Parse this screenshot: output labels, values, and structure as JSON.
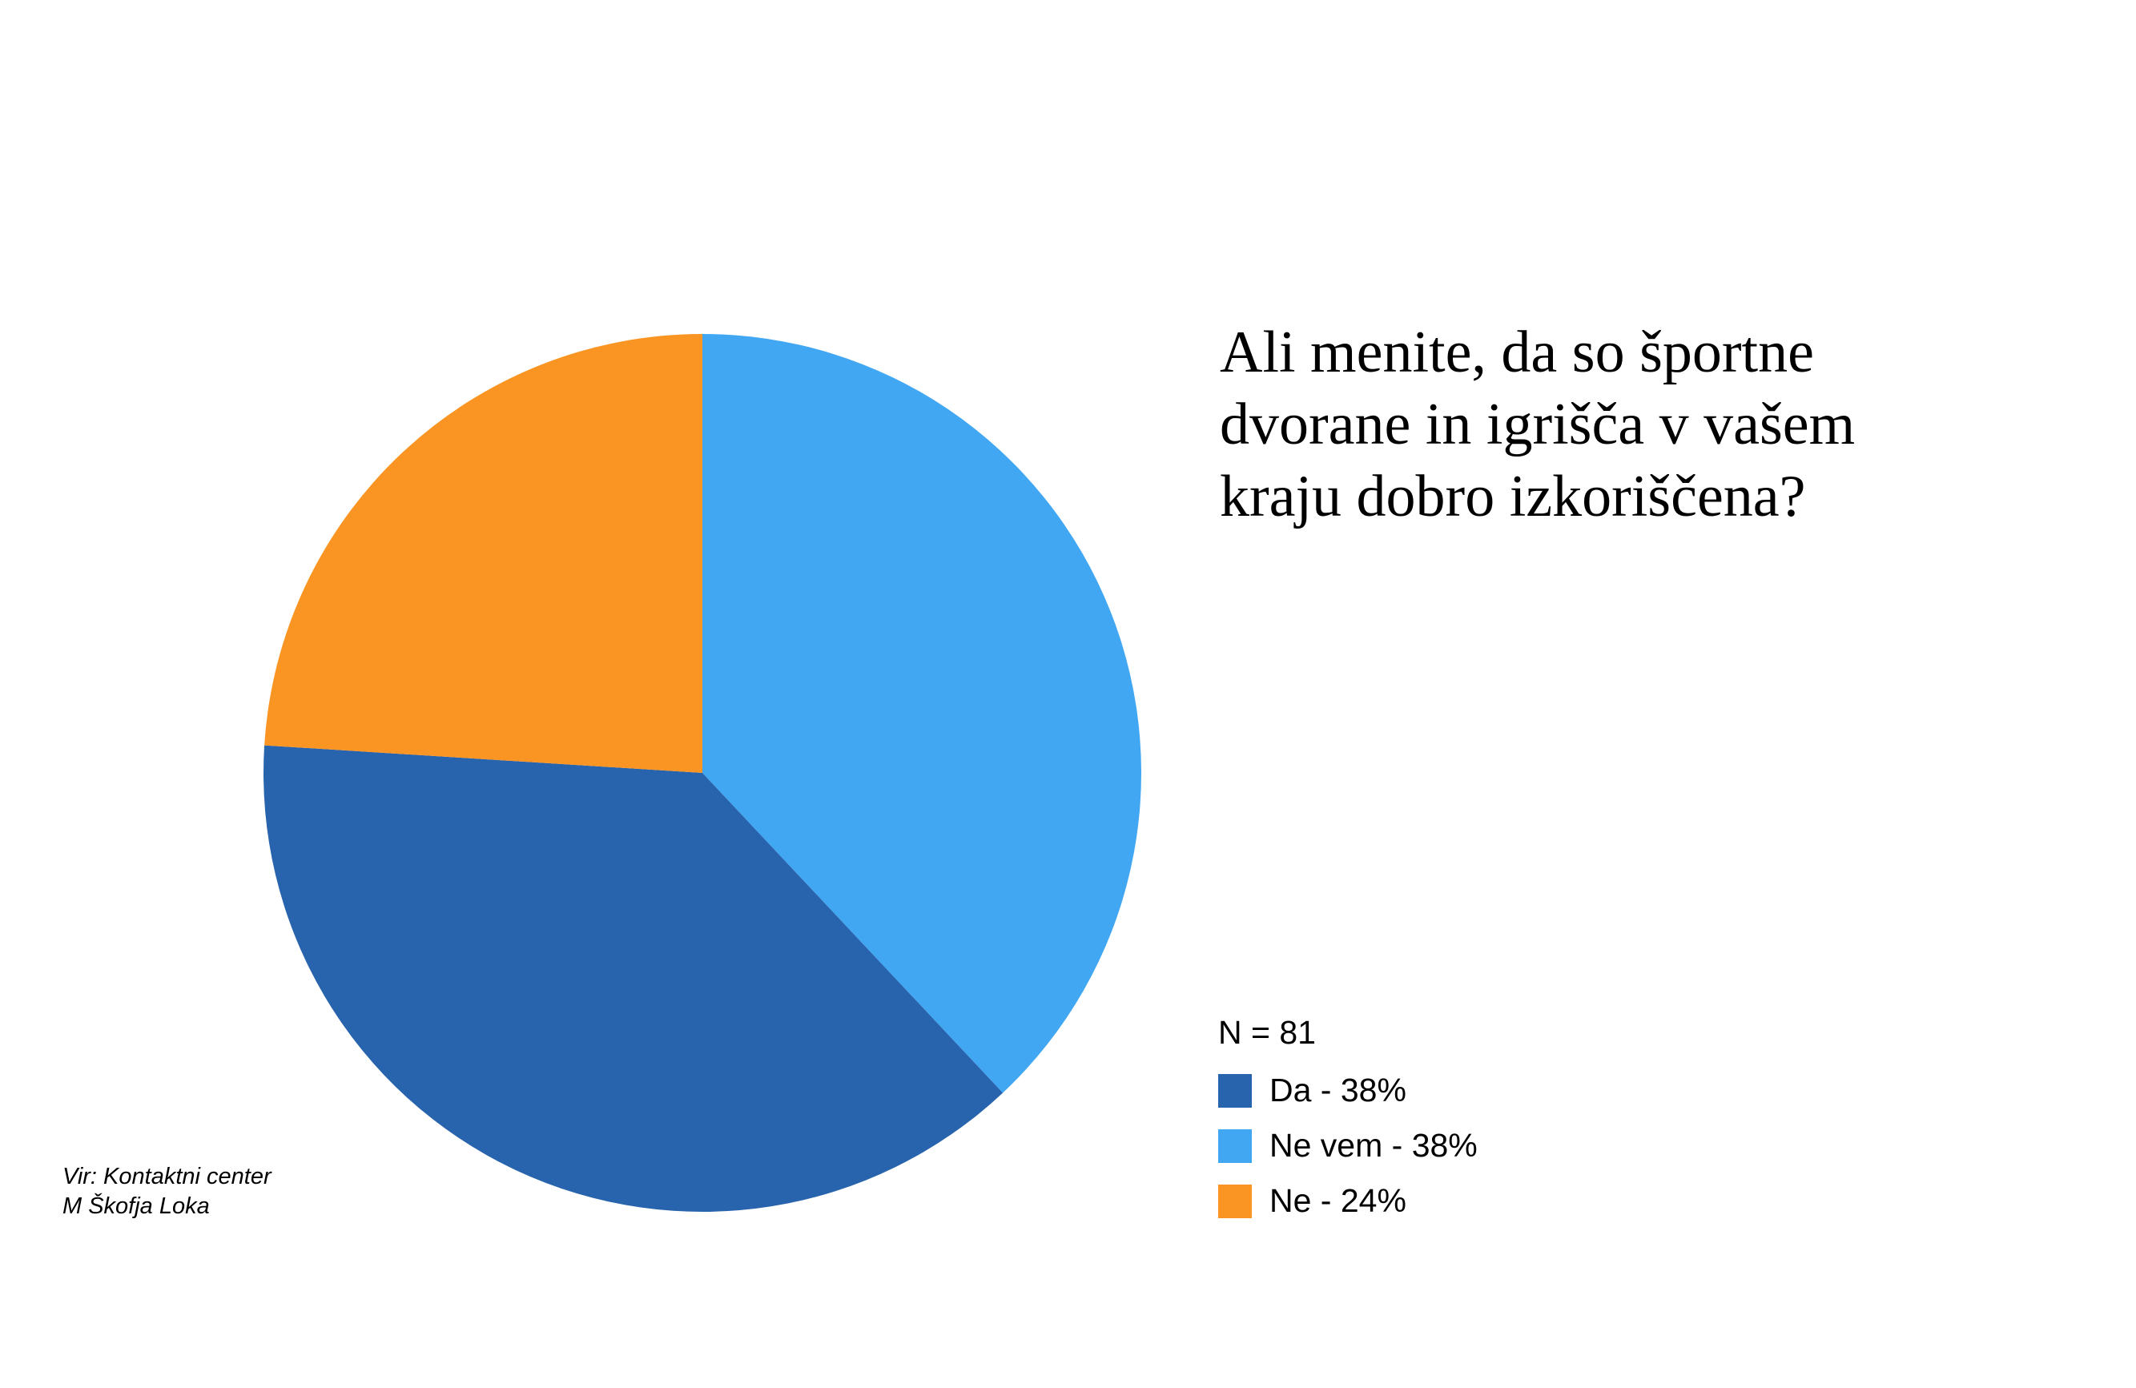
{
  "title": "Ali menite, da so športne\ndvorane in igrišča v vašem\nkraju dobro izkoriščena?",
  "source": "Vir: Kontaktni center\nM Škofja Loka",
  "legend": {
    "n_label": "N = 81",
    "items": [
      {
        "label": "Da - 38%",
        "color": "#2864ad"
      },
      {
        "label": "Ne vem - 38%",
        "color": "#42a7f3"
      },
      {
        "label": "Ne - 24%",
        "color": "#fa9423"
      }
    ]
  },
  "chart_data": {
    "type": "pie",
    "title": "Ali menite, da so športne dvorane in igrišča v vašem kraju dobro izkoriščena?",
    "n": 81,
    "slices": [
      {
        "label": "Ne vem",
        "value": 38,
        "color": "#42a7f3"
      },
      {
        "label": "Da",
        "value": 38,
        "color": "#2864ad"
      },
      {
        "label": "Ne",
        "value": 24,
        "color": "#fa9423"
      }
    ],
    "start_angle": "top",
    "direction": "clockwise",
    "legend_position": "right"
  }
}
